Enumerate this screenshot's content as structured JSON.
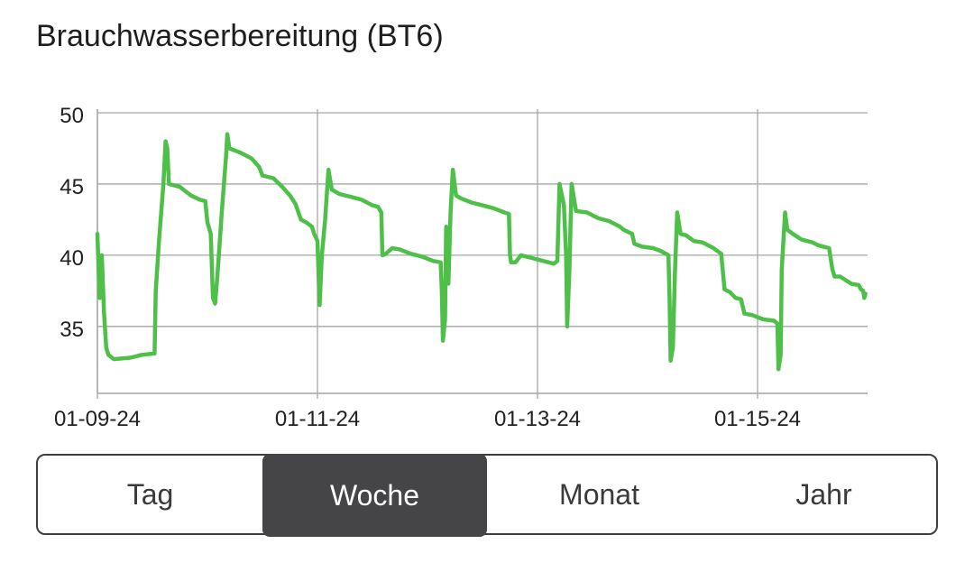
{
  "title": "Brauchwasserbereitung (BT6)",
  "tabs": [
    "Tag",
    "Woche",
    "Monat",
    "Jahr"
  ],
  "active_tab": "Woche",
  "colors": {
    "line": "#4ec04a",
    "grid": "#a6a6a6",
    "axis_text": "#212121",
    "active_tab_bg": "#454547"
  },
  "chart_data": {
    "type": "line",
    "title": "",
    "xlabel": "",
    "ylabel": "",
    "x_ticks": [
      "01-09-24",
      "01-11-24",
      "01-13-24",
      "01-15-24"
    ],
    "x_tick_days": [
      0,
      2,
      4,
      6
    ],
    "xlim": [
      0,
      7
    ],
    "y_ticks": [
      35,
      40,
      45,
      50
    ],
    "ylim": [
      30.3,
      50
    ],
    "grid": true,
    "legend": "none",
    "series": [
      {
        "name": "",
        "points": [
          [
            0.0,
            41.5
          ],
          [
            0.02,
            37.0
          ],
          [
            0.04,
            40.0
          ],
          [
            0.06,
            36.0
          ],
          [
            0.08,
            33.5
          ],
          [
            0.1,
            33.0
          ],
          [
            0.15,
            32.7
          ],
          [
            0.3,
            32.8
          ],
          [
            0.4,
            33.0
          ],
          [
            0.52,
            33.1
          ],
          [
            0.53,
            37.5
          ],
          [
            0.56,
            41.0
          ],
          [
            0.6,
            45.0
          ],
          [
            0.62,
            48.0
          ],
          [
            0.635,
            47.5
          ],
          [
            0.65,
            45.0
          ],
          [
            0.75,
            44.8
          ],
          [
            0.85,
            44.2
          ],
          [
            0.93,
            43.9
          ],
          [
            0.98,
            43.8
          ],
          [
            1.0,
            42.3
          ],
          [
            1.03,
            41.5
          ],
          [
            1.05,
            37.0
          ],
          [
            1.07,
            36.6
          ],
          [
            1.09,
            38.5
          ],
          [
            1.13,
            43.0
          ],
          [
            1.17,
            47.0
          ],
          [
            1.18,
            48.5
          ],
          [
            1.2,
            47.5
          ],
          [
            1.3,
            47.2
          ],
          [
            1.4,
            46.8
          ],
          [
            1.47,
            46.2
          ],
          [
            1.5,
            45.6
          ],
          [
            1.6,
            45.4
          ],
          [
            1.68,
            44.8
          ],
          [
            1.75,
            44.2
          ],
          [
            1.8,
            43.6
          ],
          [
            1.85,
            42.5
          ],
          [
            1.9,
            42.3
          ],
          [
            1.95,
            42.0
          ],
          [
            1.97,
            41.5
          ],
          [
            2.0,
            41.0
          ],
          [
            2.02,
            36.5
          ],
          [
            2.04,
            40.0
          ],
          [
            2.07,
            42.5
          ],
          [
            2.1,
            46.0
          ],
          [
            2.13,
            44.6
          ],
          [
            2.2,
            44.3
          ],
          [
            2.3,
            44.1
          ],
          [
            2.4,
            43.9
          ],
          [
            2.5,
            43.5
          ],
          [
            2.55,
            43.4
          ],
          [
            2.58,
            43.0
          ],
          [
            2.59,
            40.0
          ],
          [
            2.62,
            40.1
          ],
          [
            2.68,
            40.5
          ],
          [
            2.75,
            40.4
          ],
          [
            2.85,
            40.1
          ],
          [
            2.95,
            39.9
          ],
          [
            3.05,
            39.6
          ],
          [
            3.12,
            39.5
          ],
          [
            3.13,
            37.5
          ],
          [
            3.14,
            34.0
          ],
          [
            3.16,
            35.5
          ],
          [
            3.17,
            42.0
          ],
          [
            3.19,
            38.0
          ],
          [
            3.21,
            43.0
          ],
          [
            3.23,
            46.0
          ],
          [
            3.26,
            44.2
          ],
          [
            3.3,
            44.0
          ],
          [
            3.4,
            43.7
          ],
          [
            3.5,
            43.5
          ],
          [
            3.6,
            43.3
          ],
          [
            3.7,
            43.0
          ],
          [
            3.74,
            42.9
          ],
          [
            3.75,
            40.0
          ],
          [
            3.76,
            39.5
          ],
          [
            3.8,
            39.5
          ],
          [
            3.85,
            40.0
          ],
          [
            3.95,
            39.8
          ],
          [
            4.05,
            39.6
          ],
          [
            4.15,
            39.4
          ],
          [
            4.18,
            39.6
          ],
          [
            4.2,
            45.0
          ],
          [
            4.24,
            43.5
          ],
          [
            4.26,
            40.0
          ],
          [
            4.27,
            35.0
          ],
          [
            4.29,
            39.0
          ],
          [
            4.31,
            45.0
          ],
          [
            4.35,
            43.1
          ],
          [
            4.45,
            43.0
          ],
          [
            4.55,
            42.6
          ],
          [
            4.65,
            42.4
          ],
          [
            4.75,
            42.0
          ],
          [
            4.78,
            41.8
          ],
          [
            4.86,
            41.5
          ],
          [
            4.88,
            40.8
          ],
          [
            4.95,
            40.6
          ],
          [
            5.05,
            40.5
          ],
          [
            5.12,
            40.3
          ],
          [
            5.19,
            40.0
          ],
          [
            5.2,
            37.0
          ],
          [
            5.21,
            32.6
          ],
          [
            5.23,
            33.5
          ],
          [
            5.25,
            39.0
          ],
          [
            5.27,
            43.0
          ],
          [
            5.3,
            41.5
          ],
          [
            5.35,
            41.4
          ],
          [
            5.42,
            41.0
          ],
          [
            5.5,
            40.9
          ],
          [
            5.6,
            40.5
          ],
          [
            5.67,
            40.1
          ],
          [
            5.7,
            37.6
          ],
          [
            5.75,
            37.4
          ],
          [
            5.8,
            37.0
          ],
          [
            5.85,
            36.9
          ],
          [
            5.88,
            35.9
          ],
          [
            5.95,
            35.8
          ],
          [
            6.05,
            35.5
          ],
          [
            6.15,
            35.4
          ],
          [
            6.18,
            35.2
          ],
          [
            6.19,
            32.0
          ],
          [
            6.21,
            33.0
          ],
          [
            6.22,
            39.0
          ],
          [
            6.25,
            43.0
          ],
          [
            6.27,
            41.8
          ],
          [
            6.32,
            41.5
          ],
          [
            6.4,
            41.1
          ],
          [
            6.5,
            40.9
          ],
          [
            6.55,
            40.7
          ],
          [
            6.6,
            40.6
          ],
          [
            6.65,
            40.5
          ],
          [
            6.68,
            39.0
          ],
          [
            6.7,
            38.5
          ],
          [
            6.75,
            38.5
          ],
          [
            6.85,
            38.0
          ],
          [
            6.92,
            37.9
          ],
          [
            6.94,
            37.6
          ],
          [
            6.96,
            37.5
          ],
          [
            6.97,
            37.0
          ],
          [
            6.98,
            37.3
          ]
        ]
      }
    ]
  }
}
